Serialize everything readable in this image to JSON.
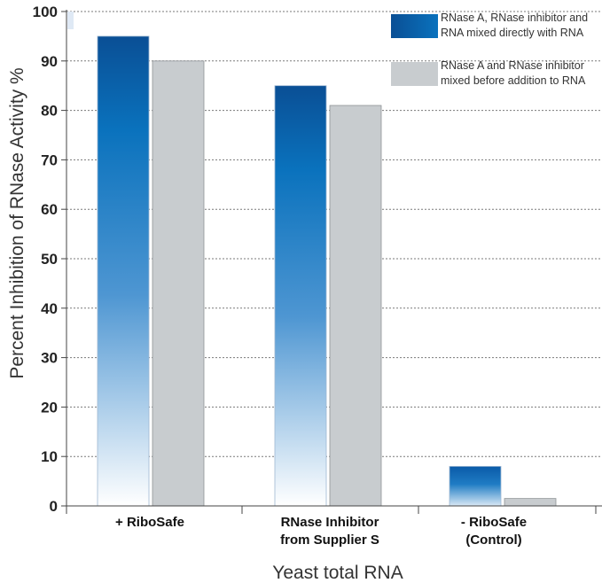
{
  "chart_data": {
    "type": "bar",
    "categories": [
      [
        "+ RiboSafe"
      ],
      [
        "RNase Inhibitor",
        "from Supplier S"
      ],
      [
        "- RiboSafe",
        "(Control)"
      ]
    ],
    "series": [
      {
        "name": [
          "RNase A, RNase inhibitor and",
          "RNA mixed directly with RNA"
        ],
        "values": [
          95,
          85,
          8
        ],
        "color": "#0a64b0"
      },
      {
        "name": [
          "RNase A and RNase inhibitor",
          "mixed before addition to RNA"
        ],
        "values": [
          90,
          81,
          1.5
        ],
        "color": "#c8cccf"
      }
    ],
    "title": "",
    "xlabel": "Yeast total RNA",
    "ylabel": "Percent Inhibition of RNase Activity %",
    "ylim": [
      0,
      100
    ],
    "yticks": [
      0,
      10,
      20,
      30,
      40,
      50,
      60,
      70,
      80,
      90,
      100
    ],
    "grid": true,
    "legend_position": "top-right"
  }
}
